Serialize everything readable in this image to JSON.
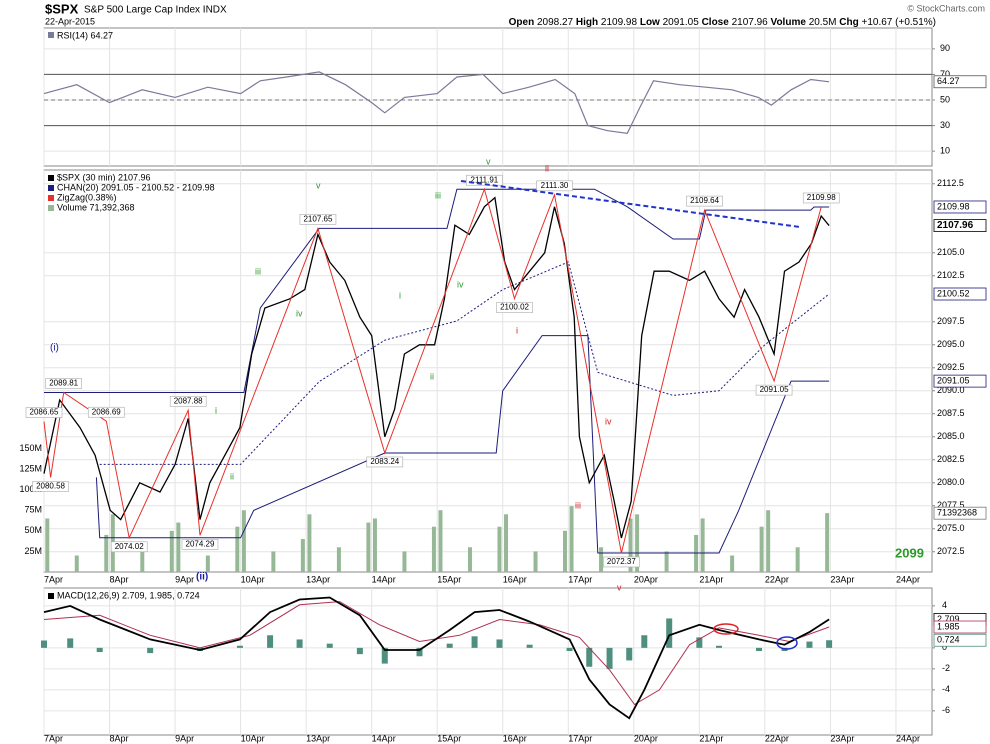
{
  "header": {
    "symbol": "$SPX",
    "name": "S&P 500 Large Cap Index INDX",
    "date": "22-Apr-2015",
    "quote": [
      {
        "label": "Open",
        "value": "2098.27"
      },
      {
        "label": "High",
        "value": "2109.98"
      },
      {
        "label": "Low",
        "value": "2091.05"
      },
      {
        "label": "Close",
        "value": "2107.96"
      },
      {
        "label": "Volume",
        "value": "20.5M"
      },
      {
        "label": "Chg",
        "value": "+10.67 (+0.51%)"
      }
    ],
    "credit": "© StockCharts.com"
  },
  "chart_data": [
    {
      "type": "line",
      "title": "RSI(14) 64.27",
      "color": "#7a7a9a",
      "x": [
        0,
        0.5,
        1,
        1.5,
        2,
        2.5,
        3,
        3.3,
        3.7,
        4.2,
        4.6,
        5.0,
        5.2,
        5.5,
        6.0,
        6.3,
        6.7,
        7.0,
        7.4,
        7.8,
        8.1,
        8.3,
        8.6,
        8.9,
        9.1,
        9.3,
        9.7,
        10.1,
        10.5,
        10.9,
        11.1,
        11.4,
        11.7,
        11.98
      ],
      "values": [
        55,
        62,
        48,
        58,
        52,
        60,
        55,
        65,
        68,
        72,
        62,
        48,
        40,
        52,
        55,
        68,
        70,
        55,
        60,
        66,
        55,
        30,
        26,
        24,
        45,
        65,
        62,
        60,
        58,
        52,
        46,
        58,
        66,
        64.27
      ],
      "last_value": 64.27,
      "overbought": 70,
      "midline": 50,
      "oversold": 30,
      "xlim": [
        0,
        13.55
      ],
      "ylim": [
        -1.6,
        106.3
      ],
      "yticks": [
        10,
        30,
        50,
        70,
        90
      ],
      "grid": true
    },
    {
      "type": "line",
      "price": {
        "name": "$SPX (30 min) 2107.96",
        "color": "#000000",
        "x": [
          0,
          0.24,
          0.55,
          0.78,
          1.01,
          1.17,
          1.46,
          1.77,
          2.0,
          2.2,
          2.38,
          2.53,
          2.76,
          2.99,
          3.17,
          3.37,
          3.75,
          3.98,
          4.18,
          4.36,
          4.59,
          4.82,
          5.0,
          5.2,
          5.35,
          5.5,
          5.73,
          5.96,
          6.11,
          6.27,
          6.49,
          6.72,
          6.88,
          7.03,
          7.18,
          7.41,
          7.64,
          7.79,
          7.94,
          8.09,
          8.17,
          8.32,
          8.55,
          8.7,
          8.81,
          8.96,
          9.12,
          9.31,
          9.54,
          9.85,
          10.08,
          10.3,
          10.53,
          10.69,
          10.91,
          11.14,
          11.3,
          11.52,
          11.71,
          11.86,
          11.98
        ],
        "values": [
          2081,
          2089,
          2086,
          2083,
          2077,
          2076,
          2080,
          2079,
          2082,
          2087,
          2076,
          2080,
          2083,
          2086,
          2094,
          2099,
          2100,
          2101,
          2107,
          2104,
          2102,
          2098,
          2096,
          2085,
          2088,
          2094,
          2095,
          2095,
          2100,
          2108,
          2107,
          2110,
          2111,
          2104,
          2101,
          2103,
          2105,
          2110,
          2106,
          2098,
          2085,
          2080,
          2083,
          2078,
          2074,
          2078,
          2096,
          2103,
          2103,
          2102,
          2103,
          2100,
          2098,
          2101,
          2098,
          2094,
          2103,
          2104,
          2106,
          2109,
          2107.96
        ],
        "last_value": 2107.96
      },
      "channel": {
        "name": "CHAN(20) 2091.05 - 2100.52 - 2109.98",
        "color": "#1c1c7c",
        "upper": {
          "x": [
            0,
            3.05,
            3.3,
            4.2,
            6.15,
            6.3,
            8.4,
            8.9,
            9.6,
            10.0,
            10.1,
            11.7,
            11.75,
            11.98
          ],
          "values": [
            2089.81,
            2089.81,
            2099,
            2107.65,
            2107.65,
            2111.91,
            2111.91,
            2110,
            2106.5,
            2106.5,
            2109.64,
            2109.64,
            2109.98,
            2109.98
          ],
          "last_value": 2109.98
        },
        "middle": {
          "x": [
            0.85,
            3.0,
            4.2,
            5.2,
            6.3,
            7.0,
            8.0,
            8.45,
            9.6,
            10.3,
            11.0,
            11.98
          ],
          "values": [
            2082,
            2082,
            2091,
            2095.5,
            2097.6,
            2101,
            2104,
            2092,
            2089.5,
            2090,
            2095,
            2100.52
          ],
          "last_value": 2100.52
        },
        "lower": {
          "x": [
            0.8,
            0.85,
            3.0,
            3.2,
            5.2,
            6.9,
            7.0,
            7.6,
            8.3,
            8.45,
            10.3,
            10.6,
            11.4,
            11.98
          ],
          "values": [
            2080.58,
            2074.02,
            2074.02,
            2077,
            2083.24,
            2083.24,
            2090,
            2096,
            2096,
            2072.37,
            2072.37,
            2077,
            2091.05,
            2091.05
          ],
          "last_value": 2091.05
        }
      },
      "zigzag": {
        "name": "ZigZag(0.38%)",
        "color": "#e8302a",
        "x": [
          0,
          0.1,
          0.3,
          0.95,
          1.3,
          2.2,
          2.38,
          4.18,
          5.2,
          6.72,
          7.18,
          7.79,
          8.81,
          10.08,
          11.14,
          11.86
        ],
        "values": [
          2086.65,
          2080.58,
          2089.81,
          2086.69,
          2074.02,
          2087.88,
          2074.29,
          2107.65,
          2083.24,
          2111.91,
          2100.02,
          2111.3,
          2072.37,
          2109.64,
          2091.05,
          2109.98
        ],
        "value_labels": [
          "2086.65",
          "2080.58",
          "2089.81",
          "2086.69",
          "2074.02",
          "2087.88",
          "2074.29",
          "2107.65",
          "2083.24",
          "2111.91",
          "2100.02",
          "2111.30",
          "2072.37",
          "2109.64",
          "2091.05",
          "2109.98"
        ]
      },
      "volume": {
        "name": "Volume 71,392,368",
        "color": "#97b897",
        "axis": "y2",
        "x": [
          0.05,
          0.5,
          0.95,
          1.05,
          1.5,
          1.95,
          2.05,
          2.5,
          2.95,
          3.05,
          3.5,
          3.95,
          4.05,
          4.5,
          4.95,
          5.05,
          5.5,
          5.95,
          6.05,
          6.5,
          6.95,
          7.05,
          7.5,
          7.95,
          8.05,
          8.5,
          8.95,
          9.05,
          9.5,
          9.95,
          10.05,
          10.5,
          10.95,
          11.05,
          11.5,
          11.95
        ],
        "values": [
          65000000,
          20000000,
          45000000,
          70000000,
          25000000,
          50000000,
          60000000,
          20000000,
          55000000,
          75000000,
          25000000,
          40000000,
          70000000,
          30000000,
          60000000,
          65000000,
          25000000,
          55000000,
          75000000,
          30000000,
          55000000,
          70000000,
          25000000,
          50000000,
          80000000,
          30000000,
          65000000,
          70000000,
          25000000,
          45000000,
          65000000,
          20000000,
          55000000,
          75000000,
          30000000,
          71392368
        ],
        "last_value": 71392368
      },
      "xlim": [
        0,
        13.55
      ],
      "xticks": [
        {
          "value": 0,
          "label": "7Apr"
        },
        {
          "value": 1,
          "label": "8Apr"
        },
        {
          "value": 2,
          "label": "9Apr"
        },
        {
          "value": 3,
          "label": "10Apr"
        },
        {
          "value": 4,
          "label": "13Apr"
        },
        {
          "value": 5,
          "label": "14Apr"
        },
        {
          "value": 6,
          "label": "15Apr"
        },
        {
          "value": 7,
          "label": "16Apr"
        },
        {
          "value": 8,
          "label": "17Apr"
        },
        {
          "value": 9,
          "label": "20Apr"
        },
        {
          "value": 10,
          "label": "21Apr"
        },
        {
          "value": 11,
          "label": "22Apr"
        },
        {
          "value": 12,
          "label": "23Apr"
        },
        {
          "value": 13,
          "label": "24Apr"
        }
      ],
      "ylim": [
        2070.3,
        2114
      ],
      "yticks": [
        2112.5,
        {
          "value": 2105,
          "label": "2105.0"
        },
        2102.5,
        2097.5,
        {
          "value": 2095,
          "label": "2095.0"
        },
        2092.5,
        {
          "value": 2090,
          "label": "2090.0"
        },
        2087.5,
        {
          "value": 2085,
          "label": "2085.0"
        },
        2082.5,
        {
          "value": 2080,
          "label": "2080.0"
        },
        2077.5,
        {
          "value": 2075,
          "label": "2075.0"
        },
        2072.5
      ],
      "y2lim": [
        0,
        488000000
      ],
      "y2ticks": [
        {
          "value": 25000000,
          "label": "25M"
        },
        {
          "value": 50000000,
          "label": "50M"
        },
        {
          "value": 75000000,
          "label": "75M"
        },
        {
          "value": 100000000,
          "label": "100M"
        },
        {
          "value": 125000000,
          "label": "125M"
        },
        {
          "value": 150000000,
          "label": "150M"
        }
      ],
      "grid": true,
      "annotations": [
        "(i)",
        "(ii)",
        "i",
        "ii",
        "iii",
        "iv",
        "v",
        "i",
        "ii",
        "iii",
        "iv",
        "v",
        "i",
        "ii",
        "iii",
        "iv",
        "v",
        "2099"
      ]
    },
    {
      "type": "line",
      "title": "MACD(12,26,9) 2.709, 1.985, 0.724",
      "macd": {
        "color": "#000000",
        "x": [
          0,
          0.4,
          0.85,
          1.62,
          2.38,
          2.99,
          3.45,
          3.9,
          4.36,
          4.82,
          5.2,
          5.73,
          6.19,
          6.57,
          6.95,
          7.41,
          8.02,
          8.32,
          8.63,
          8.93,
          9.16,
          9.54,
          10.0,
          10.3,
          10.91,
          11.3,
          11.68,
          11.98
        ],
        "values": [
          3.4,
          4,
          2.7,
          0.8,
          -0.2,
          0.8,
          3.4,
          4.6,
          4.8,
          3.1,
          -0.2,
          -0.2,
          1.7,
          3.4,
          3.6,
          2.5,
          0.8,
          -3,
          -5.4,
          -6.7,
          -4,
          1.2,
          2.2,
          1.7,
          0.8,
          0.3,
          1.5,
          2.709
        ],
        "last_value": 2.709
      },
      "signal": {
        "color": "#b03050",
        "x": [
          0,
          0.85,
          1.62,
          2.38,
          3.14,
          3.9,
          4.51,
          5.12,
          5.73,
          6.34,
          6.95,
          7.56,
          8.17,
          8.63,
          9.01,
          9.39,
          9.85,
          10.3,
          10.91,
          11.37,
          11.98
        ],
        "values": [
          2.7,
          3.1,
          1.2,
          0,
          1.2,
          4.1,
          4.4,
          2.2,
          0.6,
          1.2,
          2.7,
          2.2,
          1,
          -2.1,
          -5.4,
          -4,
          0.3,
          1.9,
          1.2,
          0.6,
          1.985
        ],
        "last_value": 1.985
      },
      "histogram": {
        "color": "#4f8f7f",
        "x": [
          0,
          0.4,
          0.85,
          1.62,
          2.38,
          2.99,
          3.45,
          3.9,
          4.36,
          4.82,
          5.2,
          5.73,
          6.19,
          6.57,
          6.95,
          7.41,
          8.02,
          8.32,
          8.63,
          8.93,
          9.16,
          9.54,
          10.0,
          10.3,
          10.91,
          11.3,
          11.68,
          11.98
        ],
        "values": [
          0.7,
          0.9,
          -0.4,
          -0.5,
          -0.3,
          0.2,
          1.2,
          0.8,
          0.4,
          -0.6,
          -1.5,
          -0.8,
          0.4,
          1.1,
          0.8,
          0.3,
          -0.3,
          -1.8,
          -2.0,
          -1.2,
          1.2,
          2.8,
          1.0,
          0.2,
          -0.3,
          -0.3,
          0.6,
          0.724
        ],
        "last_value": 0.724
      },
      "xlim": [
        0,
        13.55
      ],
      "ylim": [
        -8.3,
        5.7
      ],
      "yticks": [
        -6,
        -4,
        -2,
        0,
        4
      ],
      "grid": true
    }
  ]
}
